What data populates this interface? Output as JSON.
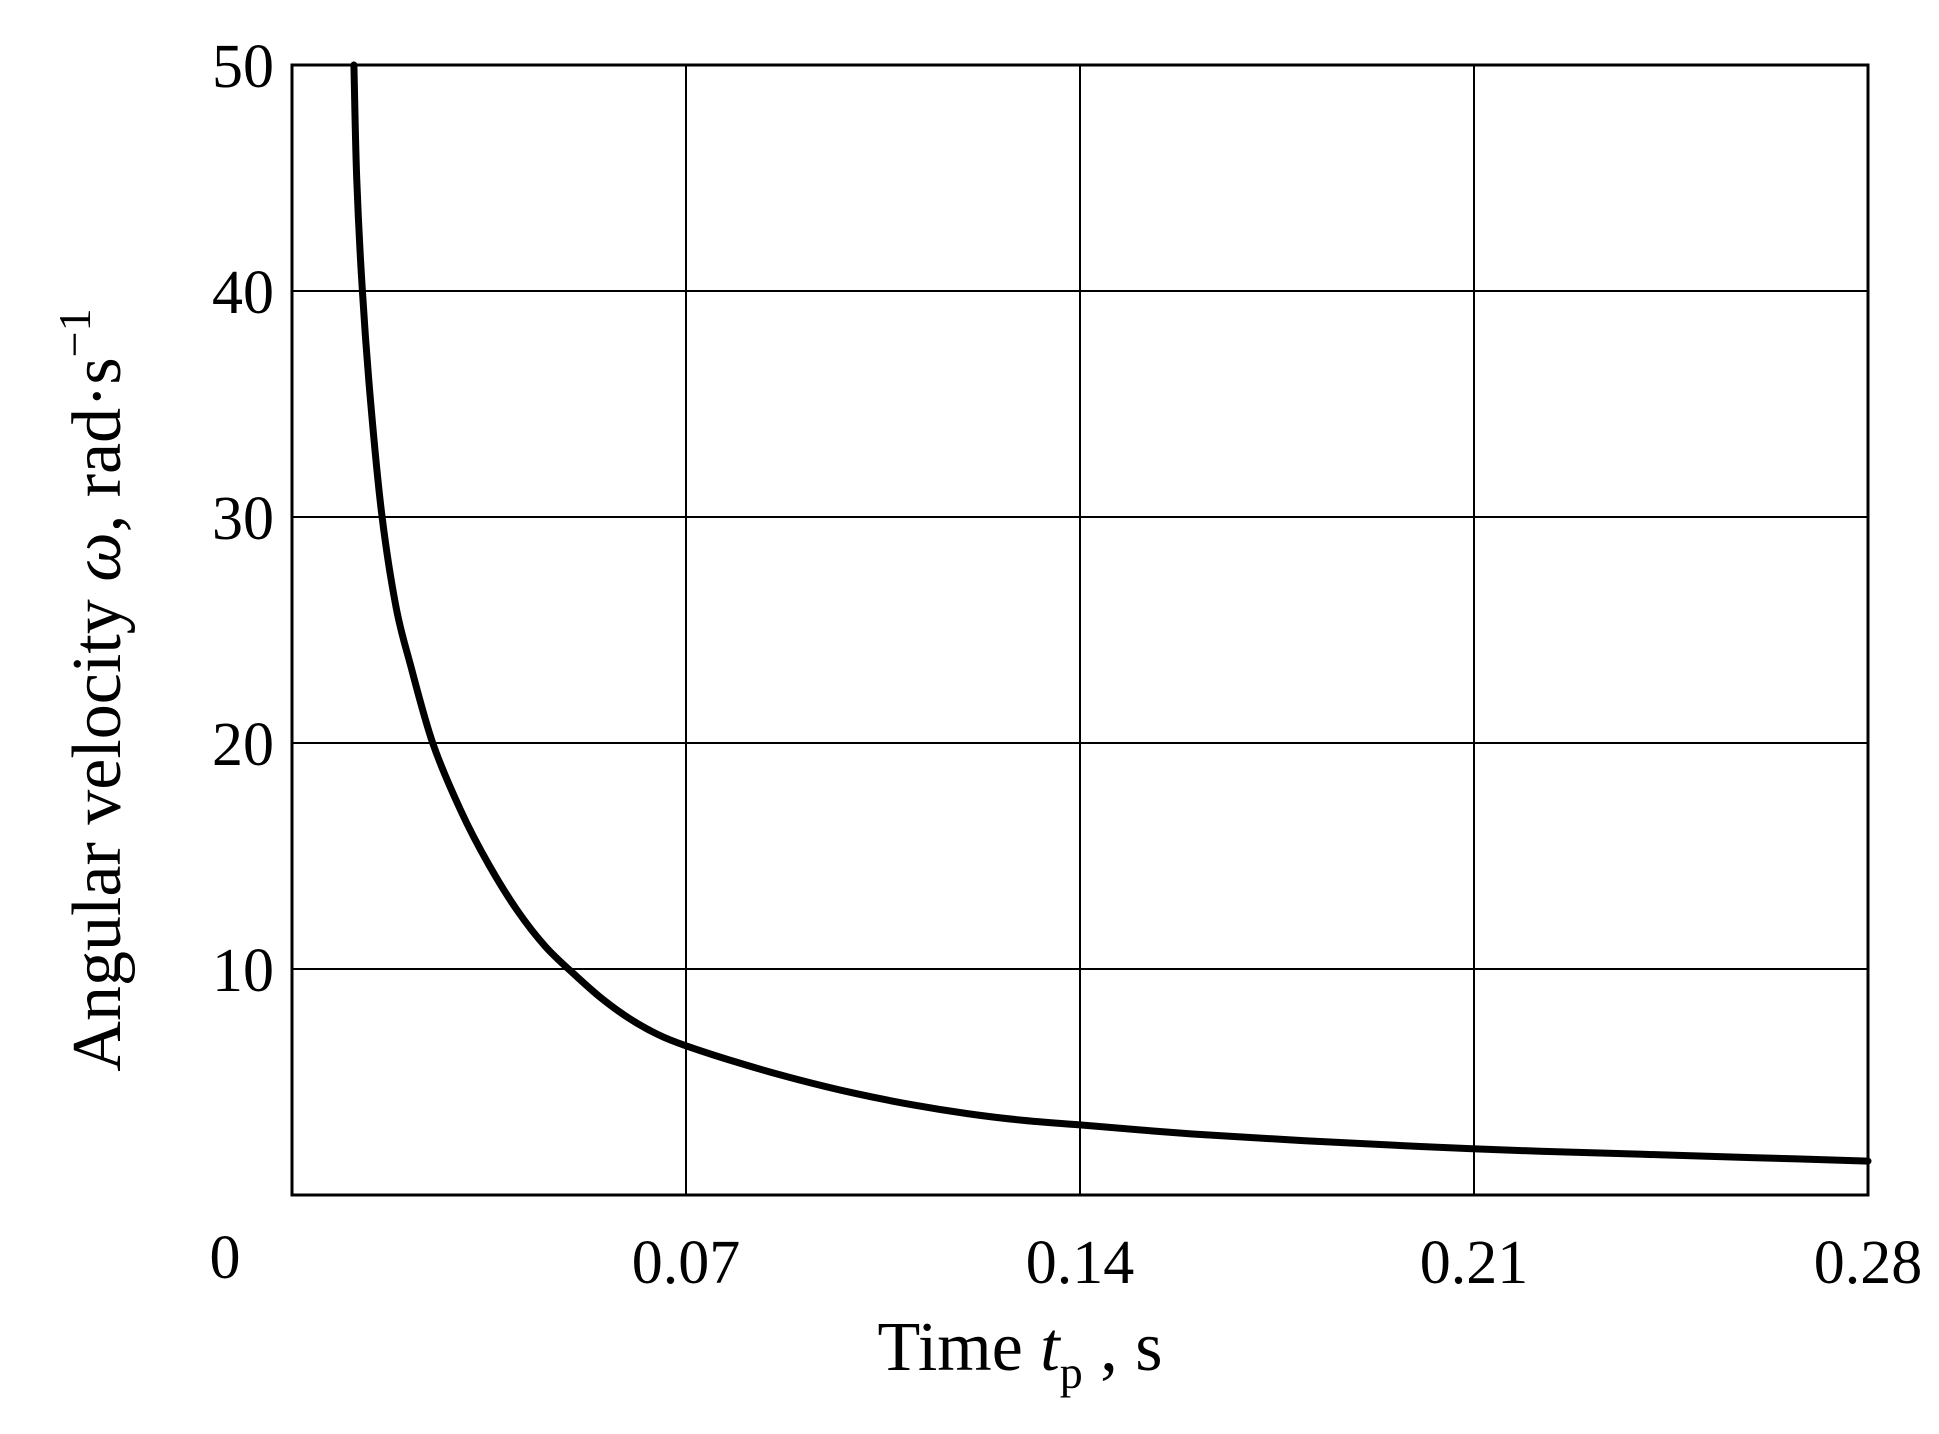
{
  "chart_data": {
    "type": "line",
    "title": "",
    "xlabel": {
      "prefix": "Time ",
      "symbol": "t",
      "subscript": "p",
      "suffix": " , s"
    },
    "ylabel": {
      "prefix": "Angular velocity ",
      "symbol": "ω",
      "suffix": ", rad·s",
      "superscript": "−1"
    },
    "origin_label": "0",
    "xlim": [
      0,
      0.28
    ],
    "ylim": [
      0,
      50
    ],
    "x_ticks": [
      0.07,
      0.14,
      0.21,
      0.28
    ],
    "x_tick_labels": [
      "0.07",
      "0.14",
      "0.21",
      "0.28"
    ],
    "y_ticks": [
      10,
      20,
      30,
      40,
      50
    ],
    "y_tick_labels": [
      "10",
      "20",
      "30",
      "40",
      "50"
    ],
    "grid": true,
    "legend": "none",
    "series": [
      {
        "color": "#000000",
        "x": [
          0.011,
          0.0115,
          0.0125,
          0.014,
          0.016,
          0.0185,
          0.021,
          0.025,
          0.03,
          0.035,
          0.04,
          0.045,
          0.05,
          0.055,
          0.06,
          0.065,
          0.07,
          0.08,
          0.09,
          0.1,
          0.11,
          0.12,
          0.13,
          0.14,
          0.16,
          0.18,
          0.2,
          0.22,
          0.24,
          0.26,
          0.28
        ],
        "y": [
          50.0,
          45.0,
          40.0,
          35.0,
          30.0,
          26.0,
          23.5,
          20.0,
          17.0,
          14.6,
          12.6,
          11.0,
          9.8,
          8.7,
          7.8,
          7.1,
          6.6,
          5.8,
          5.1,
          4.5,
          4.0,
          3.6,
          3.3,
          3.1,
          2.7,
          2.4,
          2.15,
          1.95,
          1.8,
          1.65,
          1.5
        ]
      }
    ]
  }
}
